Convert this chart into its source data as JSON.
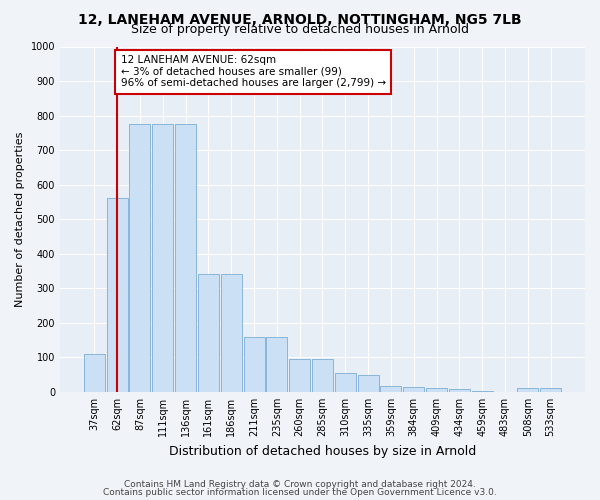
{
  "title": "12, LANEHAM AVENUE, ARNOLD, NOTTINGHAM, NG5 7LB",
  "subtitle": "Size of property relative to detached houses in Arnold",
  "xlabel": "Distribution of detached houses by size in Arnold",
  "ylabel": "Number of detached properties",
  "categories": [
    "37sqm",
    "62sqm",
    "87sqm",
    "111sqm",
    "136sqm",
    "161sqm",
    "186sqm",
    "211sqm",
    "235sqm",
    "260sqm",
    "285sqm",
    "310sqm",
    "335sqm",
    "359sqm",
    "384sqm",
    "409sqm",
    "434sqm",
    "459sqm",
    "483sqm",
    "508sqm",
    "533sqm"
  ],
  "bar_values": [
    110,
    560,
    775,
    775,
    775,
    340,
    340,
    160,
    160,
    95,
    95,
    55,
    50,
    18,
    15,
    10,
    8,
    4,
    0,
    12,
    10
  ],
  "bar_color": "#cce0f5",
  "bar_edge_color": "#7bafd4",
  "red_line_x": 1,
  "red_line_color": "#cc0000",
  "annotation_text": "12 LANEHAM AVENUE: 62sqm\n← 3% of detached houses are smaller (99)\n96% of semi-detached houses are larger (2,799) →",
  "annotation_box_facecolor": "#ffffff",
  "annotation_box_edgecolor": "#cc0000",
  "ylim": [
    0,
    1000
  ],
  "yticks": [
    0,
    100,
    200,
    300,
    400,
    500,
    600,
    700,
    800,
    900,
    1000
  ],
  "bg_color": "#f0f4f8",
  "plot_bg_color": "#e8eef5",
  "grid_color": "#ffffff",
  "title_fontsize": 10,
  "subtitle_fontsize": 9,
  "xlabel_fontsize": 9,
  "ylabel_fontsize": 8,
  "tick_fontsize": 7,
  "annotation_fontsize": 7.5,
  "footer_fontsize": 6.5,
  "footer_line1": "Contains HM Land Registry data © Crown copyright and database right 2024.",
  "footer_line2": "Contains public sector information licensed under the Open Government Licence v3.0."
}
